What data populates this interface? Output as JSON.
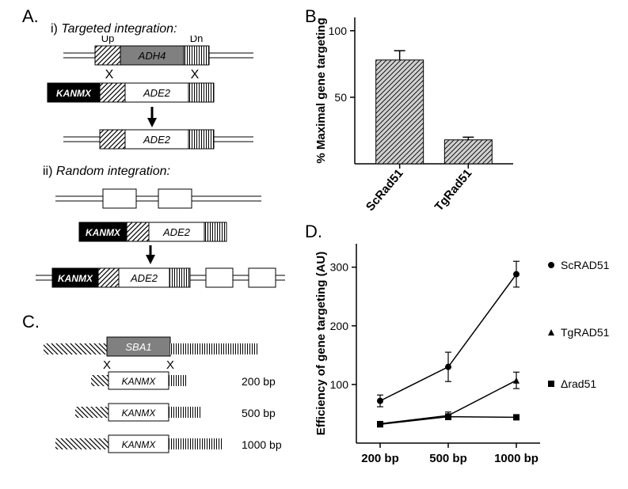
{
  "panels": {
    "A": {
      "label": "A."
    },
    "B": {
      "label": "B."
    },
    "C": {
      "label": "C."
    },
    "D": {
      "label": "D."
    }
  },
  "panelA": {
    "i_label": "i)",
    "i_title": "Targeted integration:",
    "ii_label": "ii)",
    "ii_title": "Random integration:",
    "up": "Up",
    "dn": "Dn",
    "adh4": "ADH4",
    "kanmx": "KANMX",
    "ade2": "ADE2"
  },
  "panelB": {
    "ylabel": "% Maximal gene targeting",
    "categories": [
      "ScRad51",
      "TgRad51"
    ],
    "values": [
      78,
      18
    ],
    "errors": [
      7,
      2
    ],
    "yticks": [
      50,
      100
    ],
    "bar_fill": "#cccccc",
    "stroke": "#000000",
    "hatch": true
  },
  "panelC": {
    "sba1": "SBA1",
    "kanmx": "KANMX",
    "lengths": [
      "200 bp",
      "500 bp",
      "1000 bp"
    ]
  },
  "panelD": {
    "ylabel": "Efficiency of gene targeting (AU)",
    "xcategories": [
      "200 bp",
      "500 bp",
      "1000 bp"
    ],
    "yticks": [
      100,
      200,
      300
    ],
    "series": [
      {
        "name": "ScRAD51",
        "marker": "circle",
        "values": [
          72,
          130,
          288
        ],
        "errors": [
          10,
          25,
          22
        ]
      },
      {
        "name": "TgRAD51",
        "marker": "triangle",
        "values": [
          33,
          47,
          107
        ],
        "errors": [
          4,
          6,
          14
        ]
      },
      {
        "name": "Δrad51",
        "marker": "square",
        "values": [
          32,
          45,
          44
        ],
        "errors": [
          3,
          5,
          4
        ]
      }
    ],
    "stroke": "#000000"
  }
}
